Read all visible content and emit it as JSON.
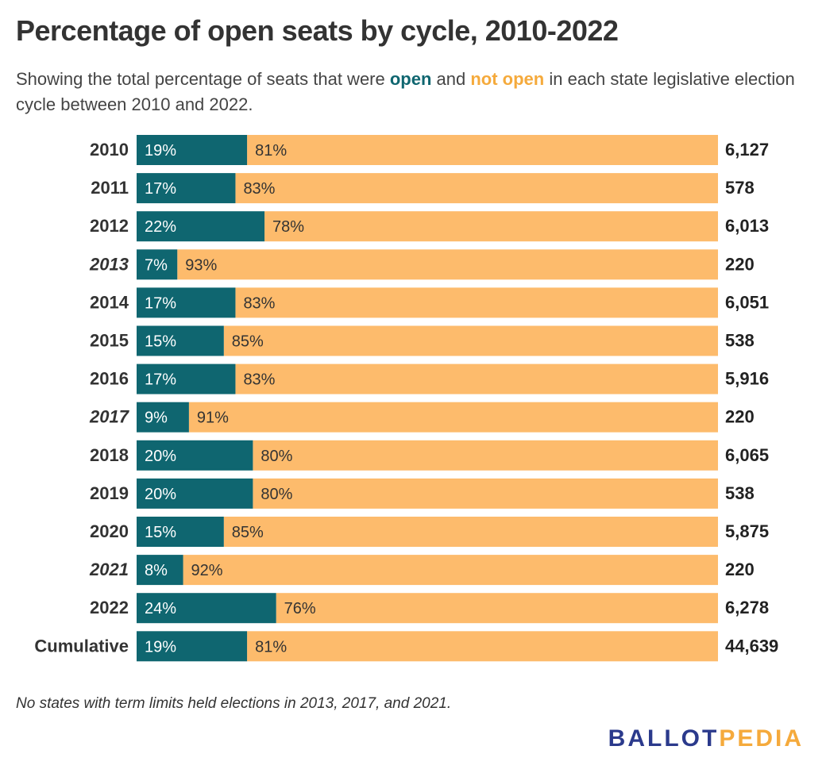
{
  "title": "Percentage of open seats by cycle, 2010-2022",
  "subtitle": {
    "before": "Showing the total percentage of seats that were ",
    "open_word": "open",
    "middle": " and ",
    "notopen_word": "not open",
    "after": " in each state legislative election cycle between 2010 and 2022."
  },
  "note": "No states with term limits held elections in 2013, 2017, and 2021.",
  "logo": {
    "part1": "BALLOT",
    "part2": "PEDIA"
  },
  "colors": {
    "open": "#0f6670",
    "not_open": "#fdbb6c",
    "logo_blue": "#2b3a8c",
    "logo_orange": "#f5aa3c"
  },
  "chart_data": {
    "type": "bar",
    "orientation": "horizontal",
    "stacked": "percent",
    "categories": [
      "2010",
      "2011",
      "2012",
      "2013",
      "2014",
      "2015",
      "2016",
      "2017",
      "2018",
      "2019",
      "2020",
      "2021",
      "2022",
      "Cumulative"
    ],
    "italic_categories": [
      "2013",
      "2017",
      "2021"
    ],
    "series": [
      {
        "name": "open",
        "values": [
          19,
          17,
          22,
          7,
          17,
          15,
          17,
          9,
          20,
          20,
          15,
          8,
          24,
          19
        ]
      },
      {
        "name": "not open",
        "values": [
          81,
          83,
          78,
          93,
          83,
          85,
          83,
          91,
          80,
          80,
          85,
          92,
          76,
          81
        ]
      }
    ],
    "totals": [
      "6,127",
      "578",
      "6,013",
      "220",
      "6,051",
      "538",
      "5,916",
      "220",
      "6,065",
      "538",
      "5,875",
      "220",
      "6,278",
      "44,639"
    ],
    "xlim": [
      0,
      100
    ]
  }
}
